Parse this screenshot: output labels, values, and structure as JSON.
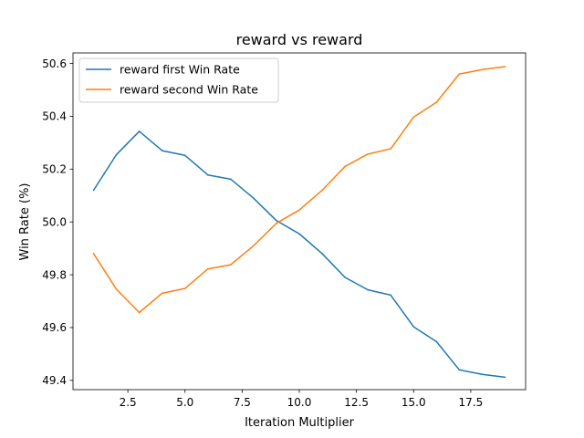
{
  "chart_data": {
    "type": "line",
    "title": "reward vs reward",
    "xlabel": "Iteration Multiplier",
    "ylabel": "Win Rate (%)",
    "xlim": [
      0.1,
      19.9
    ],
    "ylim": [
      49.365,
      50.64
    ],
    "x_ticks": [
      2.5,
      5.0,
      7.5,
      10.0,
      12.5,
      15.0,
      17.5
    ],
    "x_tick_labels": [
      "2.5",
      "5.0",
      "7.5",
      "10.0",
      "12.5",
      "15.0",
      "17.5"
    ],
    "y_ticks": [
      49.4,
      49.6,
      49.8,
      50.0,
      50.2,
      50.4,
      50.6
    ],
    "y_tick_labels": [
      "49.4",
      "49.6",
      "49.8",
      "50.0",
      "50.2",
      "50.4",
      "50.6"
    ],
    "grid": false,
    "legend_position": "top-left",
    "x": [
      1,
      2,
      3,
      4,
      5,
      6,
      7,
      8,
      9,
      10,
      11,
      12,
      13,
      14,
      15,
      16,
      17,
      18,
      19
    ],
    "series": [
      {
        "name": "reward first Win Rate",
        "color": "#1f77b4",
        "values": [
          50.12,
          50.255,
          50.343,
          50.27,
          50.252,
          50.178,
          50.162,
          50.09,
          50.005,
          49.955,
          49.88,
          49.79,
          49.743,
          49.723,
          49.603,
          49.547,
          49.44,
          49.423,
          49.412
        ]
      },
      {
        "name": "reward second Win Rate",
        "color": "#ff7f0e",
        "values": [
          49.88,
          49.745,
          49.657,
          49.73,
          49.748,
          49.822,
          49.838,
          49.91,
          49.995,
          50.045,
          50.12,
          50.21,
          50.257,
          50.277,
          50.397,
          50.453,
          50.56,
          50.577,
          50.588
        ]
      }
    ]
  }
}
